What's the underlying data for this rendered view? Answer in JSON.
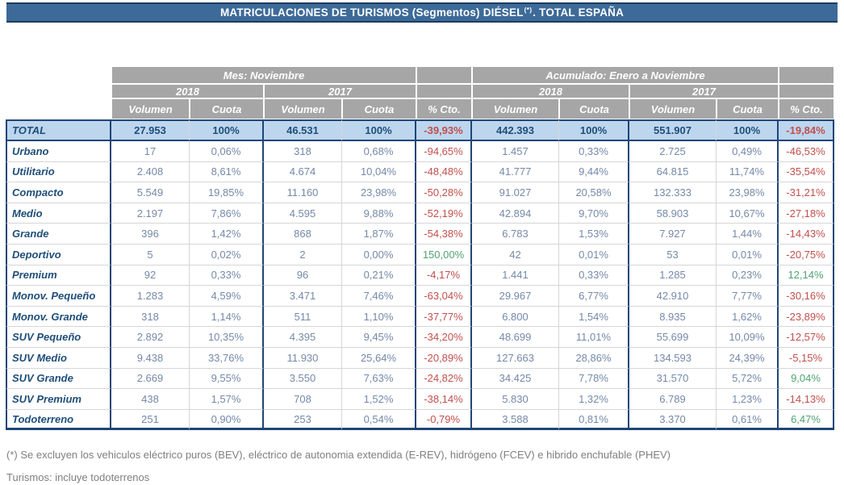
{
  "title": {
    "text": "MATRICULACIONES DE TURISMOS (Segmentos) DIÉSEL",
    "superscript": "(*)",
    "suffix": ". TOTAL ESPAÑA"
  },
  "table": {
    "groups": [
      {
        "label": "Mes: Noviembre"
      },
      {
        "label": "Acumulado: Enero a Noviembre"
      }
    ],
    "years": [
      "2018",
      "2017",
      "2018",
      "2017"
    ],
    "columns": [
      "Volumen",
      "Cuota",
      "Volumen",
      "Cuota",
      "% Cto.",
      "Volumen",
      "Cuota",
      "Volumen",
      "Cuota",
      "% Cto."
    ],
    "total_row": {
      "label": "TOTAL",
      "values": [
        "27.953",
        "100%",
        "46.531",
        "100%",
        "-39,93%",
        "442.393",
        "100%",
        "551.907",
        "100%",
        "-19,84%"
      ]
    },
    "rows": [
      {
        "label": "Urbano",
        "values": [
          "17",
          "0,06%",
          "318",
          "0,68%",
          "-94,65%",
          "1.457",
          "0,33%",
          "2.725",
          "0,49%",
          "-46,53%"
        ]
      },
      {
        "label": "Utilitario",
        "values": [
          "2.408",
          "8,61%",
          "4.674",
          "10,04%",
          "-48,48%",
          "41.777",
          "9,44%",
          "64.815",
          "11,74%",
          "-35,54%"
        ]
      },
      {
        "label": "Compacto",
        "values": [
          "5.549",
          "19,85%",
          "11.160",
          "23,98%",
          "-50,28%",
          "91.027",
          "20,58%",
          "132.333",
          "23,98%",
          "-31,21%"
        ]
      },
      {
        "label": "Medio",
        "values": [
          "2.197",
          "7,86%",
          "4.595",
          "9,88%",
          "-52,19%",
          "42.894",
          "9,70%",
          "58.903",
          "10,67%",
          "-27,18%"
        ]
      },
      {
        "label": "Grande",
        "values": [
          "396",
          "1,42%",
          "868",
          "1,87%",
          "-54,38%",
          "6.783",
          "1,53%",
          "7.927",
          "1,44%",
          "-14,43%"
        ]
      },
      {
        "label": "Deportivo",
        "values": [
          "5",
          "0,02%",
          "2",
          "0,00%",
          "150,00%",
          "42",
          "0,01%",
          "53",
          "0,01%",
          "-20,75%"
        ]
      },
      {
        "label": "Premium",
        "values": [
          "92",
          "0,33%",
          "96",
          "0,21%",
          "-4,17%",
          "1.441",
          "0,33%",
          "1.285",
          "0,23%",
          "12,14%"
        ]
      },
      {
        "label": "Monov. Pequeño",
        "values": [
          "1.283",
          "4,59%",
          "3.471",
          "7,46%",
          "-63,04%",
          "29.967",
          "6,77%",
          "42.910",
          "7,77%",
          "-30,16%"
        ]
      },
      {
        "label": "Monov. Grande",
        "values": [
          "318",
          "1,14%",
          "511",
          "1,10%",
          "-37,77%",
          "6.800",
          "1,54%",
          "8.935",
          "1,62%",
          "-23,89%"
        ]
      },
      {
        "label": "SUV Pequeño",
        "values": [
          "2.892",
          "10,35%",
          "4.395",
          "9,45%",
          "-34,20%",
          "48.699",
          "11,01%",
          "55.699",
          "10,09%",
          "-12,57%"
        ]
      },
      {
        "label": "SUV Medio",
        "values": [
          "9.438",
          "33,76%",
          "11.930",
          "25,64%",
          "-20,89%",
          "127.663",
          "28,86%",
          "134.593",
          "24,39%",
          "-5,15%"
        ]
      },
      {
        "label": "SUV Grande",
        "values": [
          "2.669",
          "9,55%",
          "3.550",
          "7,63%",
          "-24,82%",
          "34.425",
          "7,78%",
          "31.570",
          "5,72%",
          "9,04%"
        ]
      },
      {
        "label": "SUV Premium",
        "values": [
          "438",
          "1,57%",
          "708",
          "1,52%",
          "-38,14%",
          "5.830",
          "1,32%",
          "6.789",
          "1,23%",
          "-14,13%"
        ]
      },
      {
        "label": "Todoterreno",
        "values": [
          "251",
          "0,90%",
          "253",
          "0,54%",
          "-0,79%",
          "3.588",
          "0,81%",
          "3.370",
          "0,61%",
          "6,47%"
        ]
      }
    ]
  },
  "footnotes": [
    "(*) Se excluyen los vehiculos eléctrico puros (BEV), eléctrico de autonomia extendida (E-REV), hidrógeno (FCEV) e hibrido enchufable (PHEV)",
    "Turismos: incluye todoterrenos"
  ],
  "colors": {
    "title_background": "#3D6A98",
    "title_border": "#1F3C61",
    "header_gray": "#A6A6A6",
    "total_row_background": "#BDD6EE",
    "border_navy": "#1F4576",
    "label_text_navy": "#1F4E79",
    "value_text": "#7589A8",
    "negative_red": "#C0504D",
    "positive_green": "#4FA273",
    "gridline_gray": "#D6D6D6",
    "footnote_gray": "#7F7F7F"
  }
}
